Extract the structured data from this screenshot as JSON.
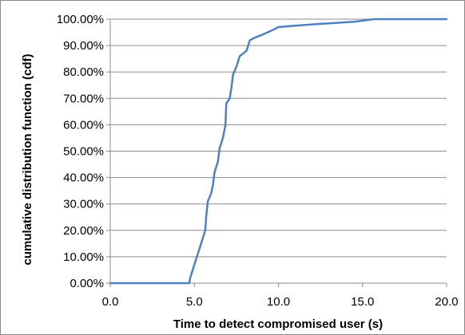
{
  "chart_data": {
    "type": "line",
    "title": "",
    "xlabel": "Time to detect compromised user (s)",
    "ylabel": "cumulative distribution function (cdf)",
    "xlim": [
      0,
      20
    ],
    "ylim": [
      0,
      1
    ],
    "x_ticks": [
      "0.0",
      "5.0",
      "10.0",
      "15.0",
      "20.0"
    ],
    "y_ticks": [
      "0.00%",
      "10.00%",
      "20.00%",
      "30.00%",
      "40.00%",
      "50.00%",
      "60.00%",
      "70.00%",
      "80.00%",
      "90.00%",
      "100.00%"
    ],
    "grid": "horizontal",
    "legend": "none",
    "series": [
      {
        "color": "#4f81bd",
        "points": [
          [
            0.0,
            0.0
          ],
          [
            4.7,
            0.0
          ],
          [
            4.75,
            0.02
          ],
          [
            4.85,
            0.04
          ],
          [
            5.0,
            0.07
          ],
          [
            5.15,
            0.1
          ],
          [
            5.3,
            0.13
          ],
          [
            5.5,
            0.17
          ],
          [
            5.65,
            0.2
          ],
          [
            5.7,
            0.25
          ],
          [
            5.8,
            0.31
          ],
          [
            6.0,
            0.34
          ],
          [
            6.1,
            0.37
          ],
          [
            6.2,
            0.42
          ],
          [
            6.4,
            0.46
          ],
          [
            6.5,
            0.51
          ],
          [
            6.7,
            0.55
          ],
          [
            6.85,
            0.6
          ],
          [
            6.9,
            0.68
          ],
          [
            7.1,
            0.7
          ],
          [
            7.2,
            0.74
          ],
          [
            7.3,
            0.79
          ],
          [
            7.5,
            0.82
          ],
          [
            7.7,
            0.86
          ],
          [
            8.1,
            0.88
          ],
          [
            8.3,
            0.92
          ],
          [
            8.6,
            0.93
          ],
          [
            9.0,
            0.94
          ],
          [
            9.7,
            0.96
          ],
          [
            10.0,
            0.97
          ],
          [
            12.0,
            0.98
          ],
          [
            14.5,
            0.99
          ],
          [
            15.7,
            1.0
          ],
          [
            20.0,
            1.0
          ]
        ]
      }
    ]
  }
}
